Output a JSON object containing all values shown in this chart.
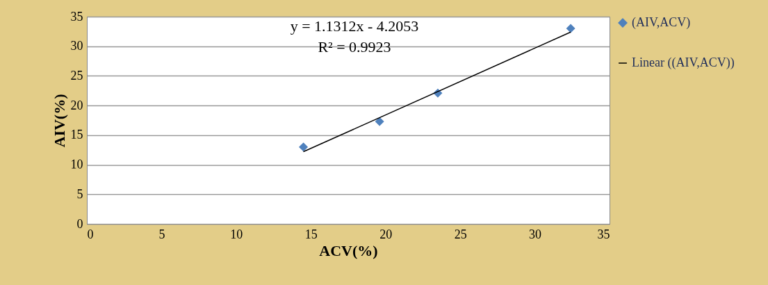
{
  "chart_data": {
    "type": "scatter",
    "xlabel": "ACV(%)",
    "ylabel": "AIV(%)",
    "annotations": [
      "y = 1.1312x - 4.2053",
      "R² = 0.9923"
    ],
    "series": [
      {
        "name": "(AIV,ACV)",
        "color": "#4f81bd",
        "marker": "diamond",
        "x": [
          14.5,
          19.6,
          23.5,
          32.4
        ],
        "values": [
          13,
          17.3,
          22.1,
          33
        ]
      },
      {
        "name": "Linear ((AIV,ACV))",
        "type": "line",
        "color": "#000000",
        "line_style": "solid",
        "x": [
          14.5,
          32.4
        ],
        "values": [
          12.2,
          32.4
        ]
      }
    ],
    "xlim": [
      0,
      35
    ],
    "xticks": [
      0,
      5,
      10,
      15,
      20,
      25,
      30,
      35
    ],
    "ylim": [
      0,
      35
    ],
    "yticks": [
      0,
      5,
      10,
      15,
      20,
      25,
      30,
      35
    ],
    "grid": "y",
    "legend": "right"
  }
}
